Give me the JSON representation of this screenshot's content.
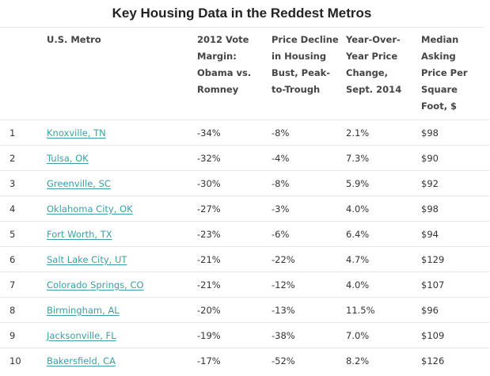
{
  "title": "Key Housing Data in the Reddest Metros",
  "columns": {
    "rank": "",
    "metro": "U.S. Metro",
    "vote": "2012 Vote Margin: Obama vs. Romney",
    "decline": "Price Decline in Housing Bust, Peak-to-Trough",
    "change": "Year-Over-Year Price Change, Sept. 2014",
    "price": "Median Asking Price Per Square Foot, $"
  },
  "rows": [
    {
      "rank": "1",
      "metro": "Knoxville, TN",
      "vote": "-34%",
      "decline": "-8%",
      "change": "2.1%",
      "price": "$98"
    },
    {
      "rank": "2",
      "metro": "Tulsa, OK",
      "vote": "-32%",
      "decline": "-4%",
      "change": "7.3%",
      "price": "$90"
    },
    {
      "rank": "3",
      "metro": "Greenville, SC",
      "vote": "-30%",
      "decline": "-8%",
      "change": "5.9%",
      "price": "$92"
    },
    {
      "rank": "4",
      "metro": "Oklahoma City, OK",
      "vote": "-27%",
      "decline": "-3%",
      "change": "4.0%",
      "price": "$98"
    },
    {
      "rank": "5",
      "metro": "Fort Worth, TX",
      "vote": "-23%",
      "decline": "-6%",
      "change": "6.4%",
      "price": "$94"
    },
    {
      "rank": "6",
      "metro": "Salt Lake City, UT",
      "vote": "-21%",
      "decline": "-22%",
      "change": "4.7%",
      "price": "$129"
    },
    {
      "rank": "7",
      "metro": "Colorado Springs, CO",
      "vote": "-21%",
      "decline": "-12%",
      "change": "4.0%",
      "price": "$107"
    },
    {
      "rank": "8",
      "metro": "Birmingham, AL",
      "vote": "-20%",
      "decline": "-13%",
      "change": "11.5%",
      "price": "$96"
    },
    {
      "rank": "9",
      "metro": "Jacksonville, FL",
      "vote": "-19%",
      "decline": "-38%",
      "change": "7.0%",
      "price": "$109"
    },
    {
      "rank": "10",
      "metro": "Bakersfield, CA",
      "vote": "-17%",
      "decline": "-52%",
      "change": "8.2%",
      "price": "$126"
    }
  ],
  "colors": {
    "link": "#3aa0a6",
    "text": "#333333",
    "rule": "#e6e6e6"
  }
}
